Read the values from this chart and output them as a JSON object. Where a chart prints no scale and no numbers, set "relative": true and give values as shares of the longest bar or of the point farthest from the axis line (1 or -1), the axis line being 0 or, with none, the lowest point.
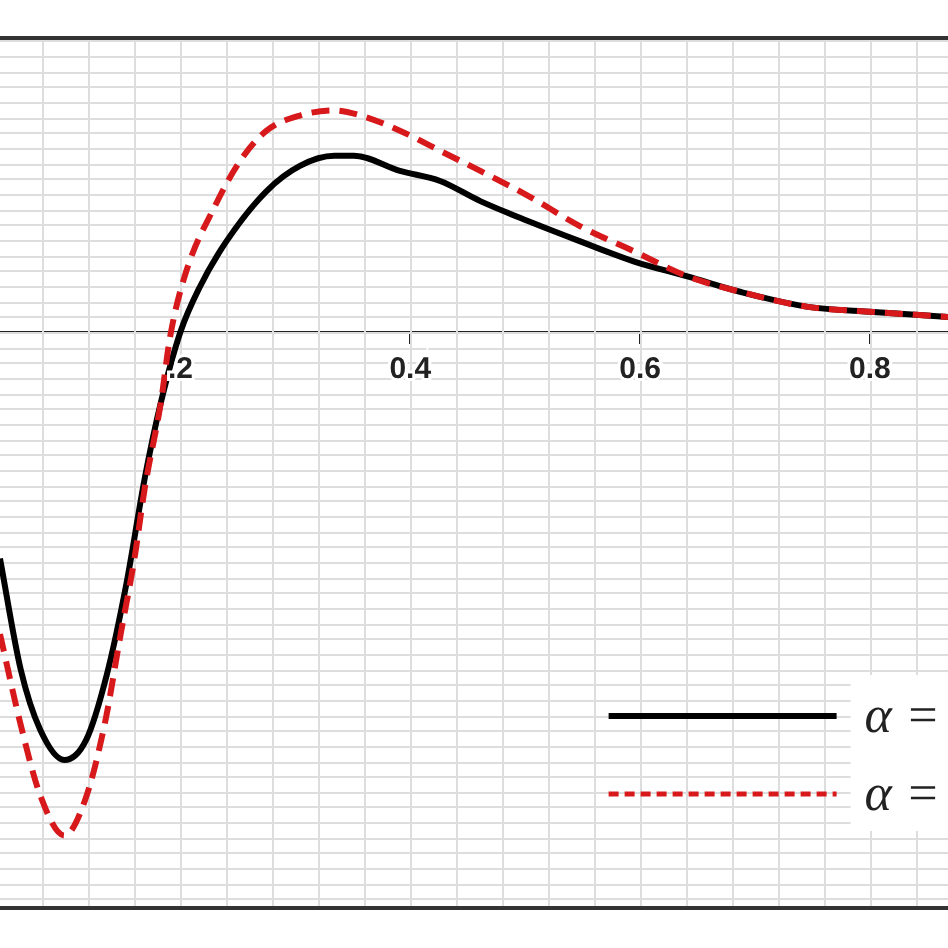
{
  "chart_data": {
    "type": "line",
    "relative": true,
    "xlim": [
      0.043,
      0.868
    ],
    "xticks": [
      {
        "value": 0.2,
        "label": ".2"
      },
      0.4,
      0.6,
      0.8
    ],
    "grid": true,
    "legend": "bottom right",
    "marker": "none",
    "series": [
      {
        "name": "α =",
        "color": "#000000",
        "x": [
          0.043,
          0.061,
          0.078,
          0.099,
          0.118,
          0.136,
          0.153,
          0.169,
          0.183,
          0.2,
          0.217,
          0.24,
          0.275,
          0.304,
          0.334,
          0.351,
          0.391,
          0.426,
          0.461,
          0.503,
          0.548,
          0.595,
          0.642,
          0.687,
          0.746,
          0.803,
          0.868
        ],
        "values": [
          -0.45,
          -0.67,
          -0.79,
          -0.85,
          -0.81,
          -0.68,
          -0.5,
          -0.29,
          -0.14,
          0,
          0.09,
          0.18,
          0.28,
          0.33,
          0.35,
          0.35,
          0.32,
          0.3,
          0.26,
          0.22,
          0.18,
          0.14,
          0.11,
          0.08,
          0.05,
          0.04,
          0.03
        ]
      },
      {
        "name": "α =",
        "color": "#d7191c",
        "line_style": "dashed",
        "x": [
          0.043,
          0.061,
          0.078,
          0.099,
          0.117,
          0.134,
          0.148,
          0.16,
          0.169,
          0.183,
          0.191,
          0.205,
          0.23,
          0.252,
          0.275,
          0.304,
          0.334,
          0.357,
          0.391,
          0.426,
          0.461,
          0.503,
          0.548,
          0.595,
          0.642,
          0.687,
          0.746,
          0.803,
          0.868
        ],
        "values": [
          -0.6,
          -0.78,
          -0.92,
          -1,
          -0.93,
          -0.78,
          -0.6,
          -0.45,
          -0.31,
          -0.14,
          -0.01,
          0.12,
          0.25,
          0.34,
          0.4,
          0.43,
          0.44,
          0.43,
          0.4,
          0.36,
          0.32,
          0.27,
          0.21,
          0.16,
          0.11,
          0.08,
          0.05,
          0.04,
          0.03
        ]
      }
    ]
  }
}
